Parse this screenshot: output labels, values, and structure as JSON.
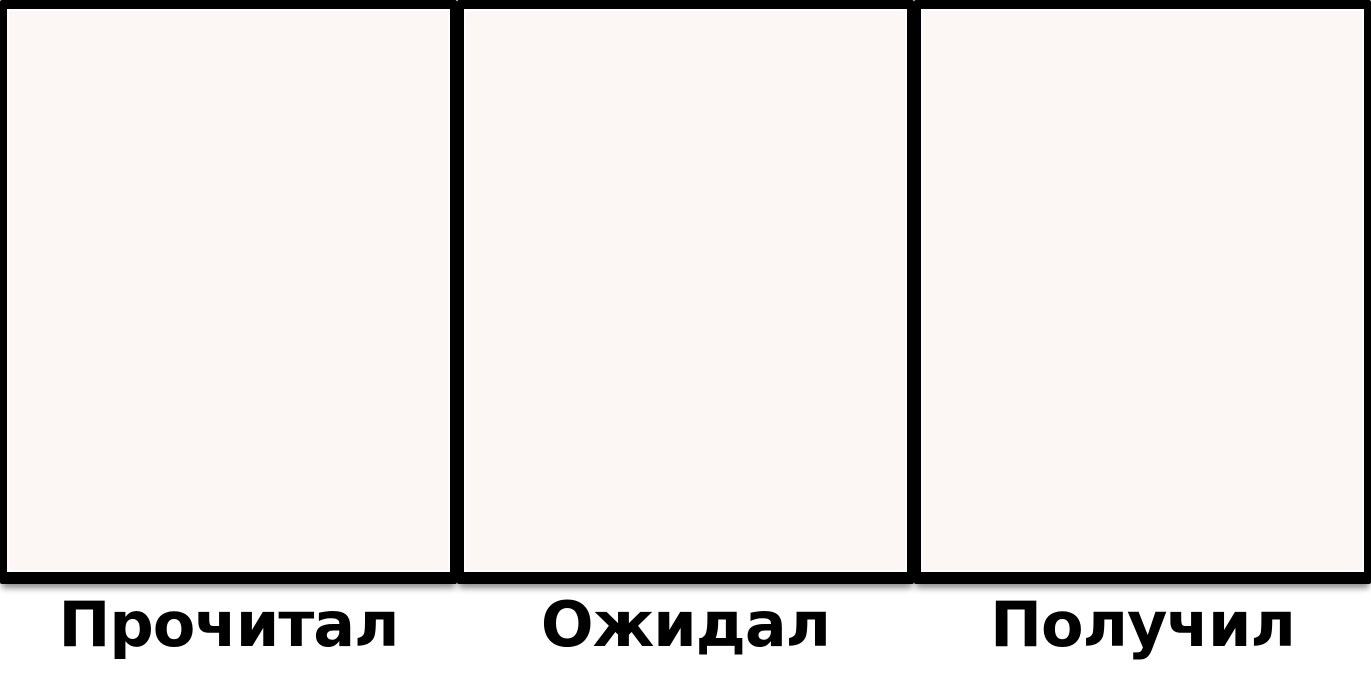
{
  "meme": {
    "name": "expectation-vs-reality-three-panel-template",
    "panels": [
      {
        "id": "read",
        "label": "Прочитал",
        "content": ""
      },
      {
        "id": "expected",
        "label": "Ожидал",
        "content": ""
      },
      {
        "id": "received",
        "label": "Получил",
        "content": ""
      }
    ],
    "colors": {
      "page_background": "#FFFFFF",
      "panel_background": "#FCF7F5",
      "panel_border": "#000000",
      "label_text": "#000000"
    }
  }
}
